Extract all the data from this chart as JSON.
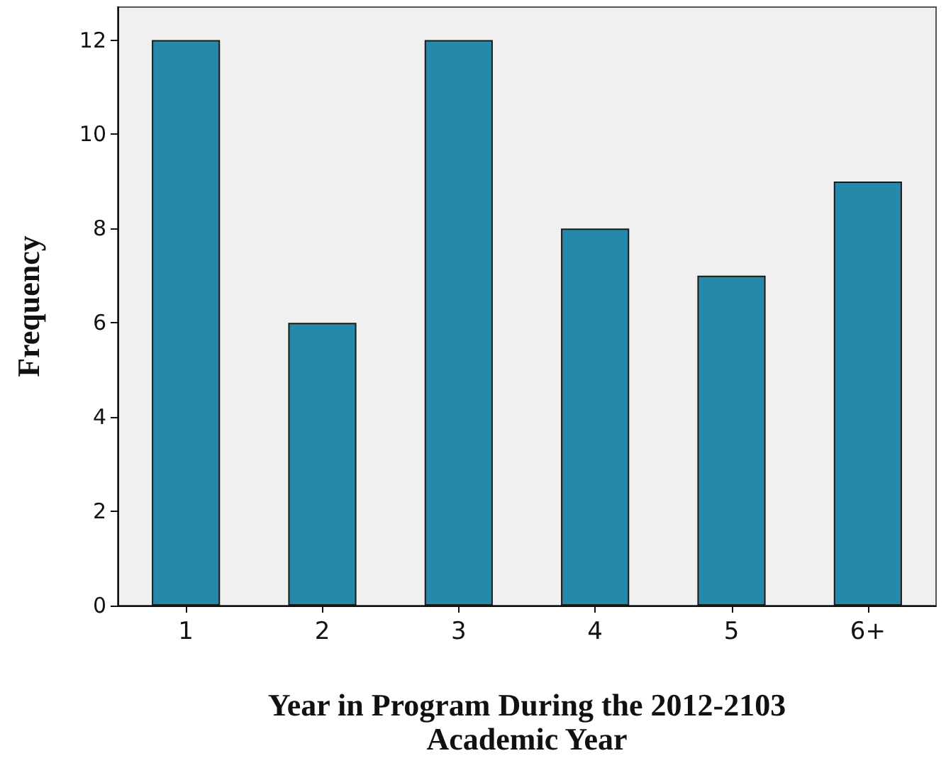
{
  "chart_data": {
    "type": "bar",
    "xlabel": "Year in Program During the 2012-2103 Academic Year",
    "ylabel": "Frequency",
    "categories": [
      "1",
      "2",
      "3",
      "4",
      "5",
      "6+"
    ],
    "values": [
      12,
      6,
      12,
      8,
      7,
      9
    ],
    "color": "#2789aa",
    "ylim": [
      0,
      12.7
    ],
    "yticks": [
      0,
      2,
      4,
      6,
      8,
      10,
      12
    ],
    "grid": false
  }
}
